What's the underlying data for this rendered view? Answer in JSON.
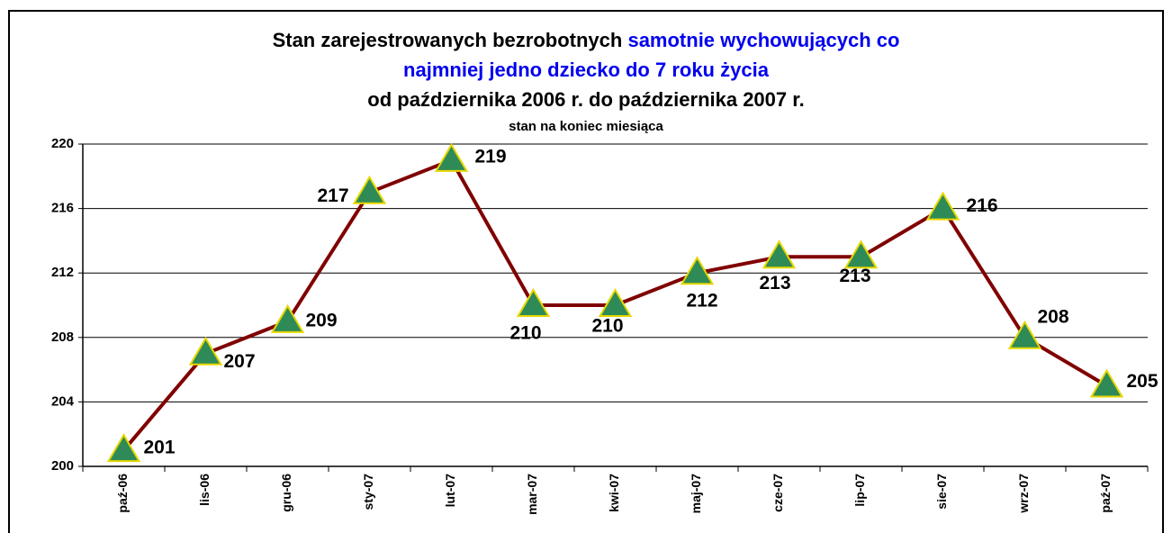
{
  "chart_data": {
    "type": "line",
    "title_parts": [
      "Stan zarejestrowanych bezrobotnych",
      "samotnie wychowujących co",
      "najmniej jedno dziecko do 7 roku życia",
      "od października 2006 r. do października 2007 r."
    ],
    "subtitle": "stan na koniec miesiąca",
    "categories": [
      "paź-06",
      "lis-06",
      "gru-06",
      "sty-07",
      "lut-07",
      "mar-07",
      "kwi-07",
      "maj-07",
      "cze-07",
      "lip-07",
      "sie-07",
      "wrz-07",
      "paź-07"
    ],
    "values": [
      201,
      207,
      209,
      217,
      219,
      210,
      210,
      212,
      213,
      213,
      216,
      208,
      205
    ],
    "color": "#800000",
    "marker_color": "#2e8b57",
    "ylim": [
      200,
      220
    ],
    "yticks": [
      200,
      204,
      208,
      212,
      216,
      220
    ],
    "grid": true
  }
}
